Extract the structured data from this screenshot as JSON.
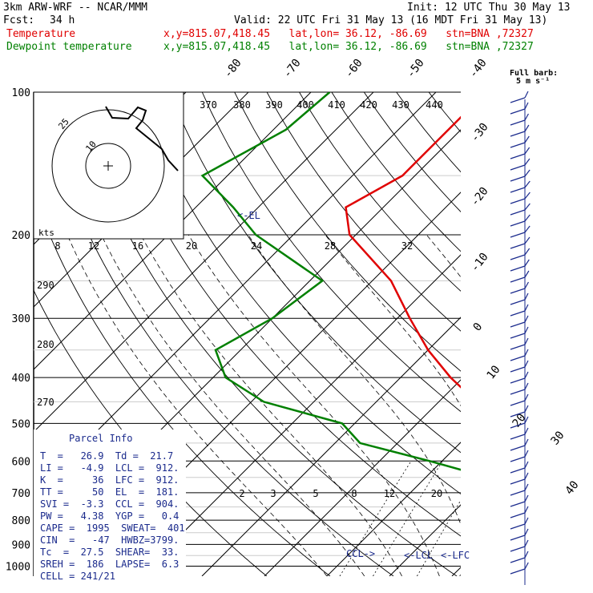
{
  "header": {
    "model": "3km ARW-WRF -- NCAR/MMM",
    "init": "Init: 12 UTC Thu 30 May 13",
    "fcst_label": "Fcst:",
    "fcst_value": "34 h",
    "valid": "Valid: 22 UTC Fri 31 May 13 (16 MDT Fri 31 May 13)",
    "temp_label": "Temperature",
    "dew_label": "Dewpoint temperature",
    "location": "x,y=815.07,418.45   lat,lon= 36.12, -86.69   stn=BNA ,72327"
  },
  "colors": {
    "temperature": "#e00000",
    "dewpoint": "#008000",
    "panel_text": "#1a2a8c",
    "grid": "#000000"
  },
  "barb_legend": {
    "line1": "Full barb:",
    "line2": "5 m s⁻¹"
  },
  "el_marker": "<-EL",
  "lcl_markers": {
    "ccl": "CCL->",
    "lcl": "<-LCL",
    "lfc": "<-LFC"
  },
  "parcel": {
    "title": "Parcel Info",
    "rows": [
      "T  =   26.9  Td =  21.7",
      "LI =   -4.9  LCL =  912.",
      "K  =     36  LFC =  912.",
      "TT =     50  EL  =  181.",
      "SVI =  -3.3  CCL =  904.",
      "PW =   4.38  YGP =   0.4",
      "CAPE =  1995  SWEAT=  401",
      "CIN  =   -47  HWBZ=3799.",
      "Tc  =  27.5  SHEAR=  33.",
      "SREH =  186  LAPSE=  6.3",
      "CELL = 241/21"
    ]
  },
  "hodograph": {
    "units_label": "kts",
    "ring_labels": [
      "10",
      "25"
    ]
  },
  "chart_data": {
    "type": "line",
    "diagram": "skew-T log-p",
    "pressure_levels": [
      100,
      200,
      300,
      400,
      500,
      600,
      700,
      800,
      900,
      1000
    ],
    "pressure_labels": [
      "100",
      "200",
      "300",
      "400",
      "500",
      "600",
      "700",
      "800",
      "900",
      "1000"
    ],
    "isotherm_labels": [
      "-80",
      "-70",
      "-60",
      "-50",
      "-40",
      "-30",
      "-20",
      "-10",
      "0",
      "10",
      "20",
      "30",
      "40"
    ],
    "theta_labels": [
      "370",
      "380",
      "390",
      "400",
      "410",
      "420",
      "430",
      "440"
    ],
    "theta_e_labels_top": [
      "8",
      "12",
      "16",
      "20",
      "24",
      "28",
      "32"
    ],
    "theta_left_labels": [
      "290",
      "280",
      "270"
    ],
    "mixing_ratio_labels": [
      "2",
      "3",
      "5",
      "8",
      "12",
      "20"
    ],
    "series": [
      {
        "name": "Temperature",
        "points": [
          [
            100,
            -62
          ],
          [
            150,
            -62
          ],
          [
            175,
            -66
          ],
          [
            200,
            -61
          ],
          [
            250,
            -47
          ],
          [
            300,
            -38
          ],
          [
            350,
            -30
          ],
          [
            400,
            -22
          ],
          [
            450,
            -14
          ],
          [
            500,
            -8
          ],
          [
            550,
            -4
          ],
          [
            600,
            1
          ],
          [
            650,
            6
          ],
          [
            700,
            10
          ],
          [
            750,
            13
          ],
          [
            800,
            16
          ],
          [
            850,
            18
          ],
          [
            900,
            20
          ],
          [
            950,
            23
          ],
          [
            1000,
            28
          ]
        ]
      },
      {
        "name": "Dewpoint temperature",
        "points": [
          [
            100,
            -87
          ],
          [
            120,
            -88
          ],
          [
            150,
            -94
          ],
          [
            175,
            -84
          ],
          [
            200,
            -76
          ],
          [
            250,
            -58
          ],
          [
            300,
            -60
          ],
          [
            350,
            -64
          ],
          [
            400,
            -58
          ],
          [
            450,
            -48
          ],
          [
            500,
            -32
          ],
          [
            550,
            -26
          ],
          [
            600,
            -12
          ],
          [
            650,
            0
          ],
          [
            700,
            7
          ],
          [
            750,
            12
          ],
          [
            800,
            16
          ],
          [
            850,
            20
          ],
          [
            880,
            21
          ],
          [
            900,
            21
          ],
          [
            950,
            20
          ],
          [
            970,
            20
          ]
        ]
      }
    ],
    "hodograph": {
      "u": [
        0,
        4,
        10,
        12,
        13,
        15,
        17,
        18,
        18
      ],
      "v": [
        0,
        2,
        4,
        6,
        9,
        12,
        15,
        16,
        17
      ]
    }
  }
}
